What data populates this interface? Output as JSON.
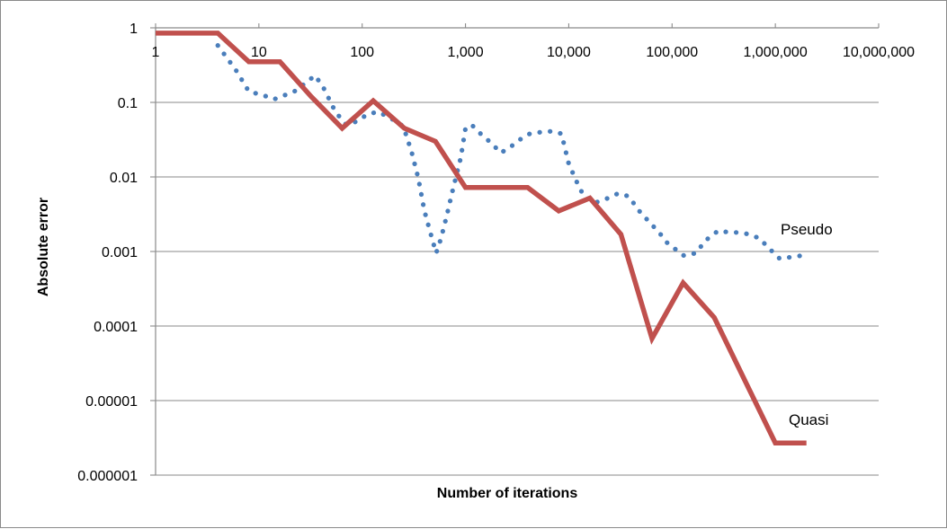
{
  "chart_data": {
    "type": "line",
    "title": "",
    "xlabel": "Number of iterations",
    "ylabel": "Absolute error",
    "x_scale": "log",
    "y_scale": "log",
    "xlim": [
      1,
      10000000
    ],
    "ylim": [
      1e-06,
      1
    ],
    "grid": "horizontal",
    "x_tick_values": [
      1,
      10,
      100,
      1000,
      10000,
      100000,
      1000000,
      10000000
    ],
    "x_tick_labels": [
      "1",
      "10",
      "100",
      "1,000",
      "10,000",
      "100,000",
      "1,000,000",
      "10,000,000"
    ],
    "y_tick_values": [
      1,
      0.1,
      0.01,
      0.001,
      0.0001,
      1e-05,
      1e-06
    ],
    "y_tick_labels": [
      "1",
      "0.1",
      "0.01",
      "0.001",
      "0.0001",
      "0.00001",
      "0.000001"
    ],
    "series": [
      {
        "name": "Pseudo",
        "color": "#4a7ebb",
        "style": "dotted",
        "points": [
          [
            4,
            0.58
          ],
          [
            6,
            0.27
          ],
          [
            8,
            0.14
          ],
          [
            11,
            0.125
          ],
          [
            14,
            0.11
          ],
          [
            22,
            0.14
          ],
          [
            28,
            0.18
          ],
          [
            35,
            0.23
          ],
          [
            42,
            0.16
          ],
          [
            55,
            0.075
          ],
          [
            70,
            0.05
          ],
          [
            90,
            0.056
          ],
          [
            110,
            0.068
          ],
          [
            140,
            0.075
          ],
          [
            180,
            0.064
          ],
          [
            250,
            0.048
          ],
          [
            300,
            0.022
          ],
          [
            350,
            0.0095
          ],
          [
            400,
            0.0035
          ],
          [
            480,
            0.0014
          ],
          [
            520,
            0.00095
          ],
          [
            580,
            0.0015
          ],
          [
            650,
            0.0028
          ],
          [
            750,
            0.0065
          ],
          [
            900,
            0.018
          ],
          [
            1000,
            0.045
          ],
          [
            1150,
            0.05
          ],
          [
            1400,
            0.038
          ],
          [
            1800,
            0.028
          ],
          [
            2200,
            0.021
          ],
          [
            2800,
            0.026
          ],
          [
            3500,
            0.033
          ],
          [
            4200,
            0.038
          ],
          [
            5500,
            0.04
          ],
          [
            7000,
            0.041
          ],
          [
            8500,
            0.038
          ],
          [
            10000,
            0.015
          ],
          [
            12000,
            0.0085
          ],
          [
            14000,
            0.0055
          ],
          [
            18000,
            0.0045
          ],
          [
            24000,
            0.0052
          ],
          [
            30000,
            0.006
          ],
          [
            38000,
            0.0055
          ],
          [
            48000,
            0.0035
          ],
          [
            60000,
            0.0025
          ],
          [
            75000,
            0.0018
          ],
          [
            90000,
            0.0013
          ],
          [
            110000,
            0.00105
          ],
          [
            130000,
            0.00088
          ],
          [
            170000,
            0.00095
          ],
          [
            210000,
            0.0014
          ],
          [
            280000,
            0.0019
          ],
          [
            360000,
            0.0018
          ],
          [
            450000,
            0.0018
          ],
          [
            560000,
            0.0017
          ],
          [
            700000,
            0.0015
          ],
          [
            900000,
            0.00105
          ],
          [
            1100000,
            0.0008
          ],
          [
            1500000,
            0.00085
          ],
          [
            2000000,
            0.0009
          ]
        ]
      },
      {
        "name": "Quasi",
        "color": "#c0504d",
        "style": "solid",
        "points": [
          [
            1,
            0.85
          ],
          [
            2,
            0.85
          ],
          [
            4,
            0.85
          ],
          [
            8,
            0.35
          ],
          [
            16,
            0.35
          ],
          [
            32,
            0.12
          ],
          [
            64,
            0.045
          ],
          [
            128,
            0.105
          ],
          [
            256,
            0.045
          ],
          [
            512,
            0.03
          ],
          [
            1000,
            0.0072
          ],
          [
            2000,
            0.0072
          ],
          [
            4000,
            0.0072
          ],
          [
            8000,
            0.0035
          ],
          [
            16000,
            0.0052
          ],
          [
            32000,
            0.0017
          ],
          [
            64000,
            6.8e-05
          ],
          [
            128000,
            0.00038
          ],
          [
            256000,
            0.00013
          ],
          [
            512000,
            1.8e-05
          ],
          [
            1000000,
            2.7e-06
          ],
          [
            2000000,
            2.7e-06
          ]
        ]
      }
    ]
  }
}
